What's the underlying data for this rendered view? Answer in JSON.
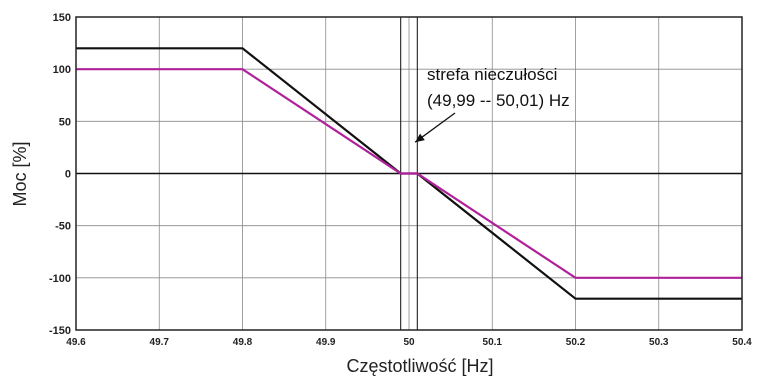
{
  "chart_data": {
    "type": "line",
    "xlabel": "Częstotliwość [Hz]",
    "ylabel": "Moc [%]",
    "xlim": [
      49.6,
      50.4
    ],
    "ylim": [
      -150,
      150
    ],
    "x_ticks": [
      49.6,
      49.7,
      49.8,
      49.9,
      50,
      50.1,
      50.2,
      50.3,
      50.4
    ],
    "x_tick_labels": [
      "49.6",
      "49.7",
      "49.8",
      "49.9",
      "50",
      "50.1",
      "50.2",
      "50.3",
      "50.4"
    ],
    "y_ticks": [
      150,
      100,
      50,
      0,
      -50,
      -100,
      -150
    ],
    "y_tick_labels": [
      "150",
      "100",
      "50",
      "0",
      "-50",
      "-100",
      "-150"
    ],
    "grid": true,
    "deadband_lines": [
      49.99,
      50.01
    ],
    "series": [
      {
        "color": "#111111",
        "points": [
          [
            49.6,
            120
          ],
          [
            49.8,
            120
          ],
          [
            49.99,
            0
          ],
          [
            50.01,
            0
          ],
          [
            50.2,
            -120
          ],
          [
            50.4,
            -120
          ]
        ]
      },
      {
        "color": "#b0209a",
        "points": [
          [
            49.6,
            100
          ],
          [
            49.8,
            100
          ],
          [
            49.99,
            0
          ],
          [
            50.01,
            0
          ],
          [
            50.2,
            -100
          ],
          [
            50.4,
            -100
          ]
        ]
      }
    ],
    "annotation": {
      "line1": "strefa nieczułości",
      "line2": "(49,99 -- 50,01) Hz",
      "target": [
        50.005,
        30
      ]
    }
  }
}
